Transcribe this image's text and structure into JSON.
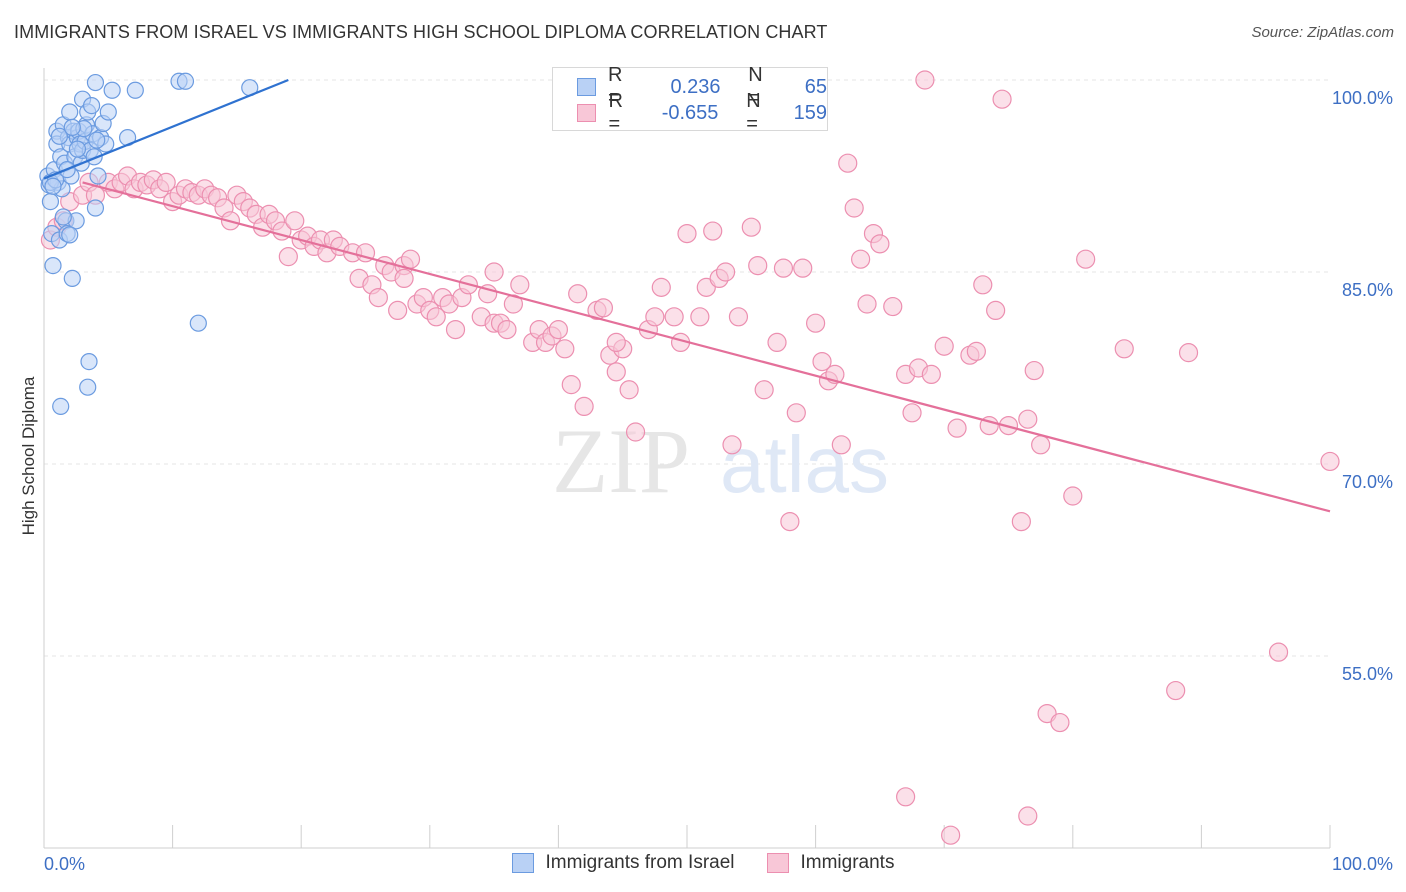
{
  "title": "IMMIGRANTS FROM ISRAEL VS IMMIGRANTS HIGH SCHOOL DIPLOMA CORRELATION CHART",
  "source": "Source: ZipAtlas.com",
  "watermark": {
    "zip": "ZIP",
    "atlas": "atlas"
  },
  "colors": {
    "blue": "#6b9be0",
    "blue_fill": "#b9d1f5",
    "blue_line": "#2f72d0",
    "pink": "#ec8fb0",
    "pink_fill": "#f8c7d7",
    "pink_line": "#e4709a",
    "axis_text": "#3d6fc4"
  },
  "legend_top": {
    "rows": [
      {
        "r_label": "R =",
        "r_value": "0.236",
        "n_label": "N =",
        "n_value": "65"
      },
      {
        "r_label": "R =",
        "r_value": "-0.655",
        "n_label": "N =",
        "n_value": "159"
      }
    ]
  },
  "bottom_legend": [
    "Immigrants from Israel",
    "Immigrants"
  ],
  "chart_data": {
    "type": "scatter",
    "title": "IMMIGRANTS FROM ISRAEL VS IMMIGRANTS HIGH SCHOOL DIPLOMA CORRELATION CHART",
    "xlabel": "",
    "ylabel": "High School Diploma",
    "xlim": [
      0,
      100
    ],
    "ylim": [
      40,
      100
    ],
    "x_tick_labels": [
      "0.0%",
      "100.0%"
    ],
    "y_ticks": [
      100,
      85,
      70,
      55
    ],
    "y_tick_labels": [
      "100.0%",
      "85.0%",
      "70.0%",
      "55.0%"
    ],
    "grid": true,
    "legend_position": "bottom",
    "series": [
      {
        "name": "Immigrants from Israel",
        "r": 0.236,
        "n": 65,
        "trend": [
          [
            0,
            92.3
          ],
          [
            19,
            100
          ]
        ],
        "points": [
          [
            0.3,
            92.5
          ],
          [
            0.4,
            91.8
          ],
          [
            0.5,
            90.5
          ],
          [
            0.6,
            88
          ],
          [
            0.7,
            85.5
          ],
          [
            0.8,
            93
          ],
          [
            1,
            96
          ],
          [
            1,
            95
          ],
          [
            1.1,
            92
          ],
          [
            1.2,
            87.5
          ],
          [
            1.3,
            94
          ],
          [
            1.4,
            91.5
          ],
          [
            1.5,
            96.5
          ],
          [
            1.6,
            93.5
          ],
          [
            1.7,
            89
          ],
          [
            1.8,
            88
          ],
          [
            1.9,
            95.5
          ],
          [
            2,
            97.5
          ],
          [
            2,
            95
          ],
          [
            2.1,
            92.5
          ],
          [
            2.2,
            84.5
          ],
          [
            2.3,
            96
          ],
          [
            2.4,
            94
          ],
          [
            2.5,
            89
          ],
          [
            2.6,
            95.5
          ],
          [
            2.7,
            96
          ],
          [
            2.8,
            95
          ],
          [
            2.9,
            93.5
          ],
          [
            3,
            98.5
          ],
          [
            3,
            94.5
          ],
          [
            3.2,
            95.2
          ],
          [
            3.3,
            96.5
          ],
          [
            3.4,
            97.5
          ],
          [
            3.5,
            78
          ],
          [
            3.4,
            76
          ],
          [
            3.6,
            94.5
          ],
          [
            3.7,
            98
          ],
          [
            3.8,
            95.8
          ],
          [
            3.9,
            94
          ],
          [
            4,
            90
          ],
          [
            4,
            99.8
          ],
          [
            4.2,
            92.5
          ],
          [
            4.4,
            95.5
          ],
          [
            4.6,
            96.6
          ],
          [
            4.8,
            95
          ],
          [
            5,
            97.5
          ],
          [
            5.3,
            99.2
          ],
          [
            6.5,
            95.5
          ],
          [
            7.1,
            99.2
          ],
          [
            10.5,
            99.9
          ],
          [
            11,
            99.9
          ],
          [
            12,
            81
          ],
          [
            16,
            99.4
          ],
          [
            1.3,
            74.5
          ],
          [
            0.5,
            92
          ],
          [
            0.9,
            92.2
          ],
          [
            1.5,
            89.3
          ],
          [
            2,
            87.9
          ],
          [
            1.8,
            93
          ],
          [
            2.6,
            94.6
          ],
          [
            0.7,
            91.7
          ],
          [
            1.2,
            95.6
          ],
          [
            3.1,
            96.2
          ],
          [
            4.1,
            95.3
          ],
          [
            2.2,
            96.3
          ]
        ]
      },
      {
        "name": "Immigrants",
        "r": -0.655,
        "n": 159,
        "trend": [
          [
            3,
            92
          ],
          [
            100,
            66.3
          ]
        ],
        "points": [
          [
            0.5,
            87.5
          ],
          [
            1,
            88.5
          ],
          [
            1.5,
            89
          ],
          [
            2,
            90.5
          ],
          [
            3,
            91
          ],
          [
            3.5,
            92
          ],
          [
            4,
            91
          ],
          [
            5,
            92
          ],
          [
            5.5,
            91.5
          ],
          [
            6,
            92
          ],
          [
            6.5,
            92.5
          ],
          [
            7,
            91.5
          ],
          [
            7.5,
            92
          ],
          [
            8,
            91.8
          ],
          [
            8.5,
            92.2
          ],
          [
            9,
            91.5
          ],
          [
            9.5,
            92
          ],
          [
            10,
            90.5
          ],
          [
            10.5,
            91
          ],
          [
            11,
            91.5
          ],
          [
            11.5,
            91.2
          ],
          [
            12,
            91
          ],
          [
            12.5,
            91.5
          ],
          [
            13,
            91
          ],
          [
            13.5,
            90.8
          ],
          [
            14,
            90
          ],
          [
            14.5,
            89
          ],
          [
            15,
            91
          ],
          [
            15.5,
            90.5
          ],
          [
            16,
            90
          ],
          [
            16.5,
            89.5
          ],
          [
            17,
            88.5
          ],
          [
            17.5,
            89.5
          ],
          [
            18,
            89
          ],
          [
            18.5,
            88.2
          ],
          [
            19,
            86.2
          ],
          [
            19.5,
            89
          ],
          [
            20,
            87.5
          ],
          [
            20.5,
            87.8
          ],
          [
            21,
            87
          ],
          [
            21.5,
            87.5
          ],
          [
            22,
            86.5
          ],
          [
            22.5,
            87.5
          ],
          [
            23,
            87
          ],
          [
            24,
            86.5
          ],
          [
            24.5,
            84.5
          ],
          [
            25,
            86.5
          ],
          [
            25.5,
            84
          ],
          [
            26,
            83
          ],
          [
            26.5,
            85.5
          ],
          [
            27,
            85
          ],
          [
            27.5,
            82
          ],
          [
            28,
            85.5
          ],
          [
            28.5,
            86
          ],
          [
            29,
            82.5
          ],
          [
            29.5,
            83
          ],
          [
            30,
            82
          ],
          [
            30.5,
            81.5
          ],
          [
            31,
            83
          ],
          [
            31.5,
            82.5
          ],
          [
            32,
            80.5
          ],
          [
            32.5,
            83
          ],
          [
            33,
            84
          ],
          [
            34,
            81.5
          ],
          [
            34.5,
            83.3
          ],
          [
            35,
            81
          ],
          [
            35.5,
            81
          ],
          [
            36,
            80.5
          ],
          [
            36.5,
            82.5
          ],
          [
            37,
            84
          ],
          [
            38,
            79.5
          ],
          [
            38.5,
            80.5
          ],
          [
            39,
            79.5
          ],
          [
            39.5,
            80
          ],
          [
            40,
            80.5
          ],
          [
            40.5,
            79
          ],
          [
            41,
            76.2
          ],
          [
            41.5,
            83.3
          ],
          [
            42,
            74.5
          ],
          [
            43,
            82
          ],
          [
            43.5,
            82.2
          ],
          [
            44,
            78.5
          ],
          [
            44.5,
            77.2
          ],
          [
            45,
            79
          ],
          [
            45.5,
            75.8
          ],
          [
            46,
            72.5
          ],
          [
            47,
            80.5
          ],
          [
            47.5,
            81.5
          ],
          [
            48,
            83.8
          ],
          [
            49,
            81.5
          ],
          [
            49.5,
            79.5
          ],
          [
            50,
            88
          ],
          [
            51,
            81.5
          ],
          [
            51.5,
            83.8
          ],
          [
            52,
            88.2
          ],
          [
            52.5,
            84.5
          ],
          [
            53,
            85
          ],
          [
            53.5,
            71.5
          ],
          [
            54,
            81.5
          ],
          [
            55,
            88.5
          ],
          [
            55.5,
            85.5
          ],
          [
            56,
            75.8
          ],
          [
            57,
            79.5
          ],
          [
            57.5,
            85.3
          ],
          [
            58,
            65.5
          ],
          [
            58.5,
            74
          ],
          [
            59,
            85.3
          ],
          [
            60,
            81
          ],
          [
            60.5,
            78
          ],
          [
            61,
            76.5
          ],
          [
            61.5,
            77
          ],
          [
            62,
            71.5
          ],
          [
            62.5,
            93.5
          ],
          [
            63,
            90
          ],
          [
            63.5,
            86
          ],
          [
            64,
            82.5
          ],
          [
            64.5,
            88
          ],
          [
            65,
            87.2
          ],
          [
            66,
            82.3
          ],
          [
            67,
            77
          ],
          [
            67.5,
            74
          ],
          [
            68,
            77.5
          ],
          [
            68.5,
            100
          ],
          [
            69,
            77
          ],
          [
            70,
            79.2
          ],
          [
            71,
            72.8
          ],
          [
            72,
            78.5
          ],
          [
            72.5,
            78.8
          ],
          [
            73,
            84
          ],
          [
            73.5,
            73
          ],
          [
            74,
            82
          ],
          [
            74.5,
            98.5
          ],
          [
            75,
            73
          ],
          [
            76,
            65.5
          ],
          [
            76.5,
            73.5
          ],
          [
            77,
            77.3
          ],
          [
            77.5,
            71.5
          ],
          [
            78,
            50.5
          ],
          [
            79,
            49.8
          ],
          [
            80,
            67.5
          ],
          [
            81,
            86
          ],
          [
            84,
            79
          ],
          [
            88,
            52.3
          ],
          [
            89,
            78.7
          ],
          [
            96,
            55.3
          ],
          [
            100,
            70.2
          ],
          [
            67,
            44
          ],
          [
            70.5,
            41
          ],
          [
            76.5,
            42.5
          ],
          [
            44.5,
            79.5
          ],
          [
            35,
            85
          ],
          [
            28,
            84.5
          ]
        ]
      }
    ]
  }
}
